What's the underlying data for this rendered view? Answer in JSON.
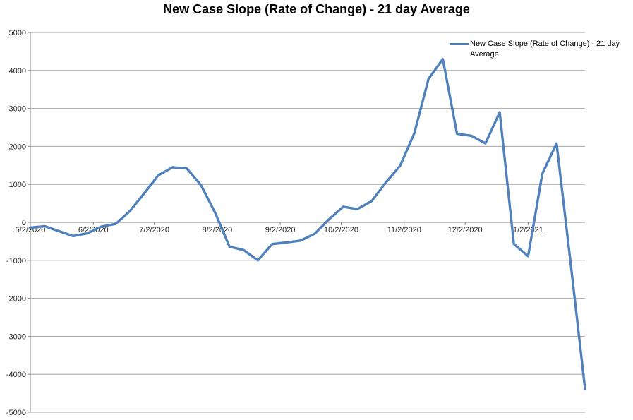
{
  "chart_data": {
    "type": "line",
    "title": "New Case Slope (Rate of Change) - 21 day Average",
    "legend": {
      "label": "New Case Slope (Rate of Change) - 21 day Average",
      "position": "top-right"
    },
    "grid": "horizontal",
    "ylim": [
      -5000,
      5000
    ],
    "y_ticks": [
      5000,
      4000,
      3000,
      2000,
      1000,
      0,
      -1000,
      -2000,
      -3000,
      -4000,
      -5000
    ],
    "x_tick_labels": [
      "5/2/2020",
      "6/2/2020",
      "7/2/2020",
      "8/2/2020",
      "9/2/2020",
      "10/2/2020",
      "11/2/2020",
      "12/2/2020",
      "1/2/2021"
    ],
    "series": [
      {
        "name": "New Case Slope (Rate of Change) - 21 day Average",
        "color": "#4F81BD",
        "x_dates": [
          "5/2/2020",
          "5/9/2020",
          "5/16/2020",
          "5/23/2020",
          "5/30/2020",
          "6/6/2020",
          "6/13/2020",
          "6/20/2020",
          "6/27/2020",
          "7/4/2020",
          "7/11/2020",
          "7/18/2020",
          "7/25/2020",
          "8/1/2020",
          "8/8/2020",
          "8/15/2020",
          "8/22/2020",
          "8/29/2020",
          "9/5/2020",
          "9/12/2020",
          "9/19/2020",
          "9/26/2020",
          "10/3/2020",
          "10/10/2020",
          "10/17/2020",
          "10/24/2020",
          "10/31/2020",
          "11/7/2020",
          "11/14/2020",
          "11/21/2020",
          "11/28/2020",
          "12/5/2020",
          "12/12/2020",
          "12/19/2020",
          "12/26/2020",
          "1/2/2021",
          "1/9/2021",
          "1/16/2021",
          "1/23/2021",
          "1/30/2021"
        ],
        "values": [
          -140,
          -100,
          -230,
          -360,
          -290,
          -110,
          -40,
          300,
          760,
          1240,
          1450,
          1420,
          980,
          250,
          -640,
          -730,
          -1000,
          -570,
          -530,
          -480,
          -300,
          80,
          410,
          350,
          560,
          1050,
          1490,
          2350,
          3780,
          4300,
          2330,
          2280,
          2080,
          2900,
          -570,
          -890,
          1280,
          2080,
          -1100,
          -4380
        ]
      }
    ],
    "colors": {
      "line": "#4F81BD",
      "gridline": "#A6A6A6",
      "axis": "#808080",
      "tick_label": "#262626",
      "title": "#000000",
      "background": "#FFFFFF"
    }
  }
}
